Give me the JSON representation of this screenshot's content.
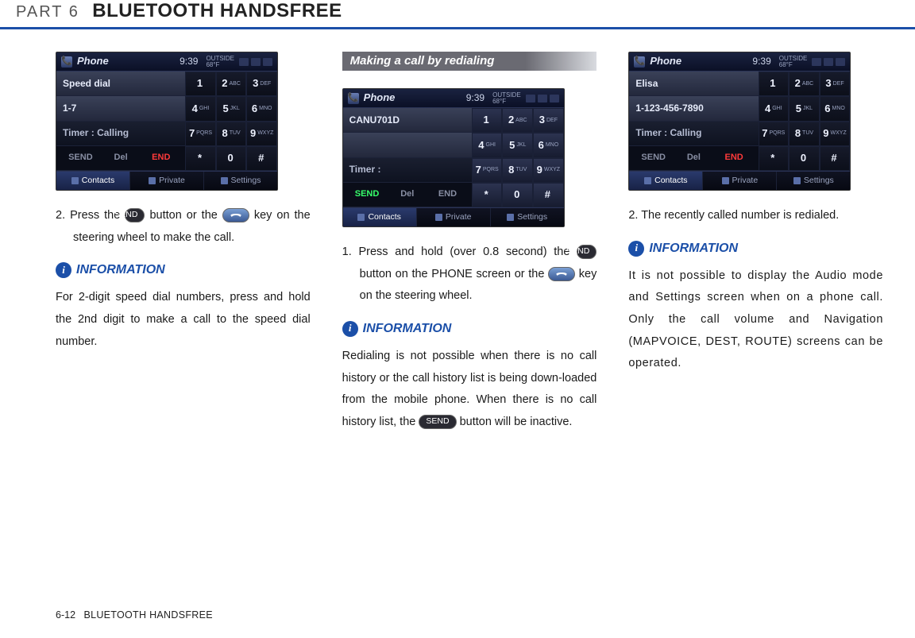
{
  "colors": {
    "header_border": "#1b4fa8",
    "info_icon_bg": "#1b4fa8",
    "info_label": "#1b4fa8"
  },
  "header": {
    "part": "PART 6",
    "title": "BLUETOOTH HANDSFREE"
  },
  "footer": {
    "page": "6-12",
    "title": "BLUETOOTH HANDSFREE"
  },
  "pills": {
    "send": "SEND"
  },
  "info": {
    "label": "INFORMATION",
    "icon": "i"
  },
  "screens": {
    "common": {
      "app": "Phone",
      "time": "9:39",
      "temp_label": "OUTSIDE",
      "temp": "68°F",
      "contacts": "Contacts",
      "private": "Private",
      "settings": "Settings",
      "send": "SEND",
      "del": "Del",
      "end": "END",
      "keys": [
        [
          "1",
          ""
        ],
        [
          "2",
          "ABC"
        ],
        [
          "3",
          "DEF"
        ],
        [
          "4",
          "GHI"
        ],
        [
          "5",
          "JKL"
        ],
        [
          "6",
          "MNO"
        ],
        [
          "7",
          "PQRS"
        ],
        [
          "8",
          "TUV"
        ],
        [
          "9",
          "WXYZ"
        ],
        [
          "*",
          ""
        ],
        [
          "0",
          ""
        ],
        [
          "#",
          ""
        ]
      ]
    },
    "s1": {
      "row1": "Speed dial",
      "row2": "1-7",
      "row3": "Timer : Calling"
    },
    "s2": {
      "row1": "CANU701D",
      "row2": "",
      "row3": "Timer :"
    },
    "s3": {
      "row1": "Elisa",
      "row2": "1-123-456-7890",
      "row3": "Timer : Calling"
    }
  },
  "col1": {
    "step2a": "2. Press the ",
    "step2b": " button or the ",
    "step2c": " key on the steering wheel to make the call.",
    "info_text": "For 2-digit speed dial numbers, press and hold the 2nd digit to make a call to the speed dial number."
  },
  "col2": {
    "section": "Making a call by redialing",
    "step1a": "1. Press and hold (over 0.8 second) the ",
    "step1b": " button on the PHONE screen or the ",
    "step1c": " key on the steering wheel.",
    "info_a": "Redialing is not possible when there is no call history or the call history list is being down-loaded from the mobile phone. When there is no call history list, the ",
    "info_b": " button will be inactive."
  },
  "col3": {
    "step2": "2. The recently called number is redialed.",
    "info_text": "It is not possible to display the Audio mode and Settings screen when on a phone call. Only the call volume and Navigation (MAPVOICE, DEST, ROUTE) screens can be operated."
  }
}
